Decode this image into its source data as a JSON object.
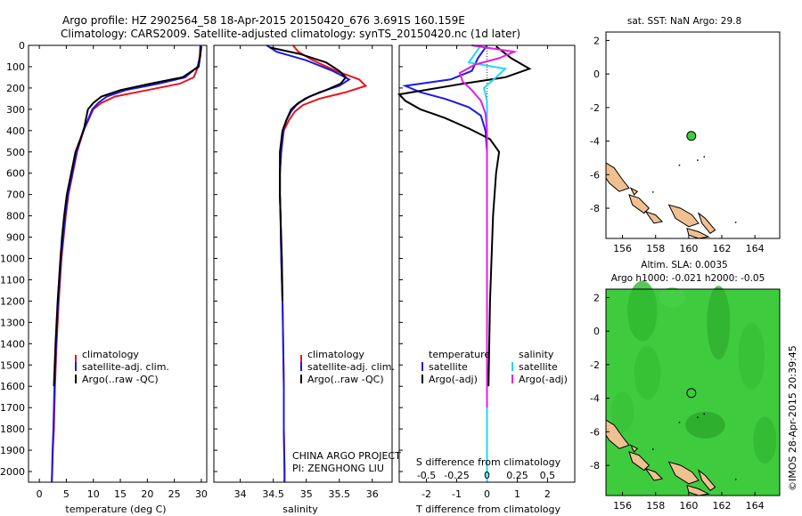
{
  "header": {
    "line1": "Argo profile: HZ 2902564_58 18-Apr-2015 20150420_676 3.691S 160.159E",
    "line2": "Climatology: CARS2009. Satellite-adjusted climatology: synTS_20150420.nc (1d later)"
  },
  "colors": {
    "clim": "#e8141a",
    "sat": "#1a1ae8",
    "argo": "#000000",
    "sat_s": "#20d8ec",
    "argo_s": "#e020e0",
    "ocean": "#3ecc3e",
    "land": "#f0c090"
  },
  "chart_data": [
    {
      "type": "line",
      "name": "temperature",
      "xlabel": "temperature (deg C)",
      "xlim": [
        -2,
        31
      ],
      "ylim": [
        0,
        2050
      ],
      "xticks": [
        0,
        5,
        10,
        15,
        20,
        25,
        30
      ],
      "yticks": [
        0,
        100,
        200,
        300,
        400,
        500,
        600,
        700,
        800,
        900,
        1000,
        1100,
        1200,
        1300,
        1400,
        1500,
        1600,
        1700,
        1800,
        1900,
        2000
      ],
      "legend": [
        "climatology",
        "satellite-adj. clim.",
        "Argo(..raw -QC)"
      ],
      "series": [
        {
          "name": "climatology",
          "color": "#e8141a",
          "x": [
            29.8,
            29.7,
            29.4,
            28.6,
            26.0,
            20.0,
            14.0,
            11.5,
            10.0,
            9.1,
            8.2,
            7.0,
            6.2,
            5.4,
            4.9,
            4.5,
            4.1,
            3.6,
            3.2,
            2.9,
            2.7,
            2.5,
            2.4,
            2.3
          ],
          "y": [
            0,
            50,
            100,
            150,
            180,
            210,
            240,
            270,
            300,
            350,
            400,
            500,
            600,
            700,
            800,
            900,
            1000,
            1200,
            1400,
            1600,
            1800,
            1900,
            2000,
            2050
          ]
        },
        {
          "name": "satellite-adj. clim.",
          "color": "#1a1ae8",
          "x": [
            29.9,
            29.8,
            29.3,
            27.0,
            22.0,
            16.0,
            12.5,
            10.9,
            9.8,
            9.0,
            8.1,
            6.9,
            6.1,
            5.3,
            4.8,
            4.4,
            4.0,
            3.5,
            3.1,
            2.8,
            2.6,
            2.45,
            2.35,
            2.3
          ],
          "y": [
            0,
            50,
            100,
            150,
            180,
            210,
            240,
            270,
            300,
            350,
            400,
            500,
            600,
            700,
            800,
            900,
            1000,
            1200,
            1400,
            1600,
            1800,
            1900,
            2000,
            2050
          ]
        },
        {
          "name": "Argo(..raw -QC)",
          "color": "#000000",
          "x": [
            30.0,
            29.8,
            29.5,
            26.5,
            20.5,
            15.0,
            11.5,
            10.0,
            9.0,
            8.2,
            6.7,
            5.9,
            5.1,
            4.6,
            4.2,
            3.9,
            3.4,
            3.0,
            2.7
          ],
          "y": [
            5,
            50,
            100,
            150,
            180,
            210,
            240,
            270,
            300,
            400,
            500,
            600,
            700,
            800,
            900,
            1000,
            1200,
            1400,
            1600
          ]
        }
      ],
      "annotations": []
    },
    {
      "type": "line",
      "name": "salinity",
      "xlabel": "salinity",
      "xlim": [
        33.6,
        36.3
      ],
      "ylim": [
        0,
        2050
      ],
      "xticks": [
        34,
        34.5,
        35,
        35.5,
        36
      ],
      "legend": [
        "climatology",
        "satellite-adj. clim.",
        "Argo(..raw -QC)"
      ],
      "series": [
        {
          "name": "climatology",
          "color": "#e8141a",
          "x": [
            34.8,
            34.88,
            35.1,
            35.45,
            35.8,
            35.9,
            35.6,
            35.2,
            34.95,
            34.83,
            34.74,
            34.66,
            34.62,
            34.6,
            34.6,
            34.61,
            34.62,
            34.64,
            34.65,
            34.66,
            34.66,
            34.67,
            34.67
          ],
          "y": [
            0,
            30,
            70,
            120,
            160,
            190,
            220,
            250,
            280,
            310,
            350,
            400,
            500,
            600,
            700,
            800,
            1000,
            1200,
            1400,
            1600,
            1800,
            2000,
            2050
          ]
        },
        {
          "name": "satellite-adj. clim.",
          "color": "#1a1ae8",
          "x": [
            34.4,
            34.55,
            35.0,
            35.4,
            35.65,
            35.5,
            35.2,
            34.98,
            34.85,
            34.77,
            34.7,
            34.65,
            34.62,
            34.6,
            34.6,
            34.61,
            34.62,
            34.64,
            34.65,
            34.66,
            34.66,
            34.67,
            34.67
          ],
          "y": [
            0,
            30,
            70,
            120,
            160,
            190,
            220,
            250,
            280,
            310,
            350,
            400,
            500,
            600,
            700,
            800,
            1000,
            1200,
            1400,
            1600,
            1800,
            2000,
            2050
          ]
        },
        {
          "name": "Argo(..raw -QC)",
          "color": "#000000",
          "x": [
            34.45,
            34.9,
            35.3,
            35.5,
            35.6,
            35.52,
            35.3,
            35.05,
            34.88,
            34.77,
            34.7,
            34.64,
            34.6,
            34.6,
            34.6,
            34.61,
            34.63,
            34.64
          ],
          "y": [
            10,
            40,
            80,
            120,
            150,
            180,
            210,
            240,
            270,
            300,
            350,
            400,
            500,
            600,
            700,
            800,
            1000,
            1200
          ]
        }
      ],
      "annotations": [
        "CHINA ARGO PROJECT",
        "PI: ZENGHONG LIU"
      ]
    },
    {
      "type": "line",
      "name": "difference",
      "xlabel": "T difference from climatology",
      "xlabel_top": "S difference from climatology",
      "xlim": [
        -2.9,
        2.9
      ],
      "ylim": [
        0,
        2050
      ],
      "xticks": [
        -2,
        -1,
        0,
        1,
        2
      ],
      "xticks_s": [
        "-0.5",
        "-0.25",
        "0",
        "0.25",
        "0.5"
      ],
      "legend_t": [
        "temperature",
        "satellite",
        "Argo(-adj)"
      ],
      "legend_s": [
        "salinity",
        "satellite",
        "Argo(-adj)"
      ],
      "series": [
        {
          "name": "T satellite",
          "color": "#1a1ae8",
          "x": [
            0.0,
            -0.3,
            -0.5,
            -1.2,
            -2.7,
            -2.2,
            -1.4,
            -0.6,
            -0.2,
            -0.05,
            0.0,
            0.0,
            0.0,
            0.0,
            0.0,
            0.0,
            0.0,
            0.0
          ],
          "y": [
            0,
            60,
            120,
            160,
            190,
            220,
            250,
            290,
            330,
            400,
            500,
            600,
            800,
            1000,
            1200,
            1400,
            1700,
            2050
          ]
        },
        {
          "name": "T Argo(-adj)",
          "color": "#000000",
          "x": [
            0.3,
            0.8,
            1.4,
            0.6,
            -0.8,
            -2.9,
            -2.7,
            -2.2,
            -1.4,
            -0.6,
            0.1,
            0.4,
            0.3,
            0.2,
            0.15,
            0.1,
            0.05
          ],
          "y": [
            5,
            60,
            110,
            150,
            180,
            230,
            260,
            300,
            340,
            390,
            440,
            500,
            600,
            800,
            1000,
            1200,
            1600
          ]
        },
        {
          "name": "S satellite",
          "color": "#20d8ec",
          "x": [
            -0.2,
            -0.4,
            -0.6,
            0.6,
            0.3,
            -0.1,
            0.0,
            0.0,
            0.0,
            0.0,
            0.0,
            0.0,
            0.0,
            0.0
          ],
          "y": [
            0,
            40,
            80,
            110,
            150,
            200,
            260,
            350,
            500,
            800,
            1100,
            1400,
            1800,
            2050
          ]
        },
        {
          "name": "S Argo(-adj)",
          "color": "#e020e0",
          "x": [
            -0.5,
            0.9,
            0.4,
            -0.4,
            -0.9,
            -0.8,
            -0.5,
            -0.2,
            -0.05,
            0.0,
            0.0,
            0.0,
            0.0,
            0.0
          ],
          "y": [
            0,
            30,
            60,
            90,
            130,
            170,
            210,
            260,
            320,
            400,
            600,
            900,
            1300,
            1700
          ]
        }
      ]
    },
    {
      "type": "scatter",
      "name": "sst-map",
      "title": "sat. SST: NaN Argo: 29.8",
      "xlim": [
        155,
        165.5
      ],
      "ylim": [
        -9.8,
        2.5
      ],
      "xticks": [
        156,
        158,
        160,
        162,
        164
      ],
      "yticks": [
        2,
        0,
        -2,
        -4,
        -6,
        -8
      ],
      "point": {
        "lon": 160.159,
        "lat": -3.691
      }
    },
    {
      "type": "heatmap",
      "name": "sla-map",
      "title1": "Altim. SLA: 0.0035",
      "title2": "Argo h1000: -0.021 h2000: -0.05",
      "xlim": [
        155,
        165.5
      ],
      "ylim": [
        -9.8,
        2.5
      ],
      "xticks": [
        156,
        158,
        160,
        162,
        164
      ],
      "yticks": [
        2,
        0,
        -2,
        -4,
        -6,
        -8
      ],
      "point": {
        "lon": 160.159,
        "lat": -3.691
      }
    }
  ],
  "watermark": "©IMOS 28-Apr-2015 20:39:45"
}
